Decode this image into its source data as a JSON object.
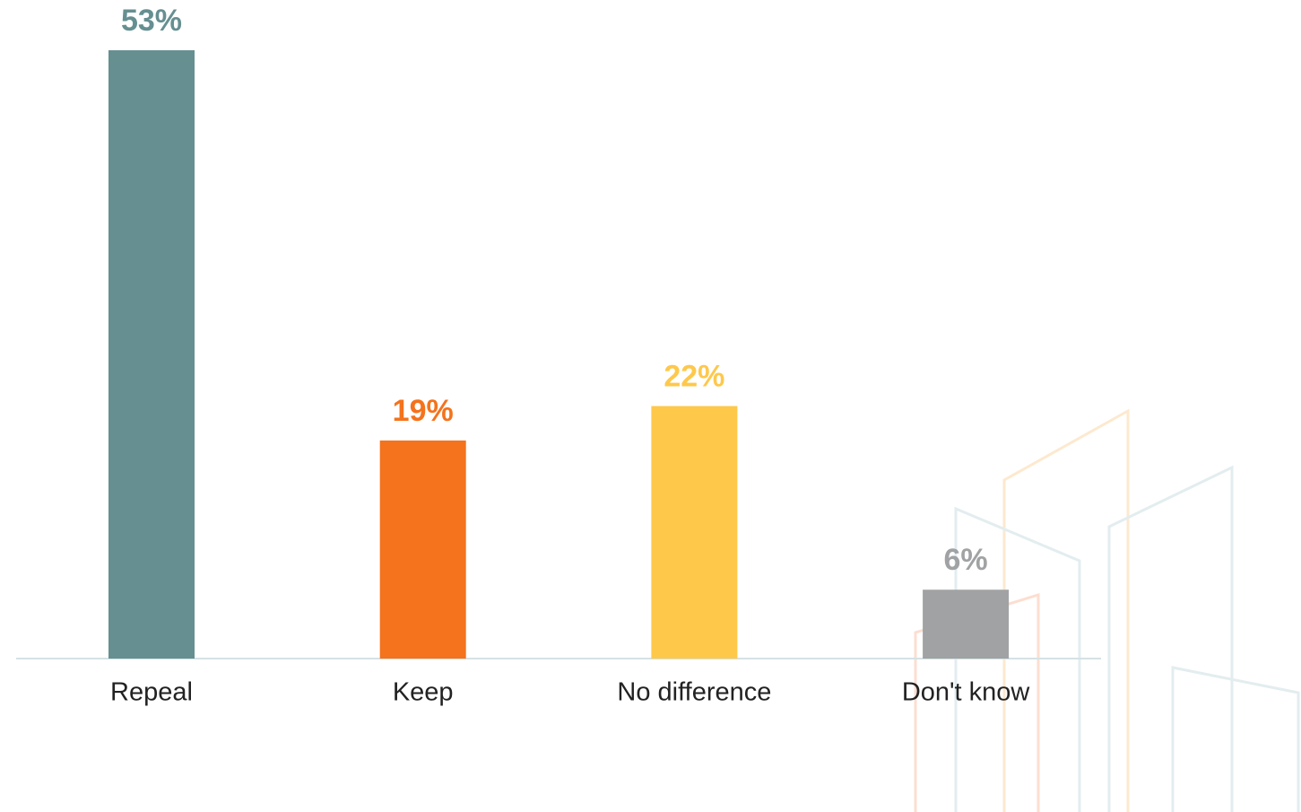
{
  "chart_data": {
    "type": "bar",
    "categories": [
      "Repeal",
      "Keep",
      "No difference",
      "Don't know"
    ],
    "values": [
      53,
      19,
      22,
      6
    ],
    "value_labels": [
      "53%",
      "19%",
      "22%",
      "6%"
    ],
    "colors": [
      "#668f91",
      "#f4731c",
      "#fec84b",
      "#a0a2a3"
    ]
  }
}
